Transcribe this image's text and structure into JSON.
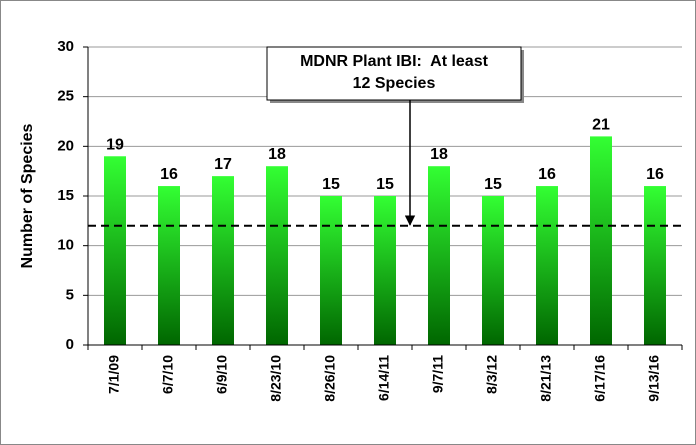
{
  "chart_data": {
    "type": "bar",
    "y_label": "Number of Species",
    "categories": [
      "7/1/09",
      "6/7/10",
      "6/9/10",
      "8/23/10",
      "8/26/10",
      "6/14/11",
      "9/7/11",
      "8/3/12",
      "8/21/13",
      "6/17/16",
      "9/13/16"
    ],
    "values": [
      19,
      16,
      17,
      18,
      15,
      15,
      18,
      15,
      16,
      21,
      16
    ],
    "color": "#33ff33",
    "ylim": [
      0,
      30
    ],
    "yticks": [
      0,
      5,
      10,
      15,
      20,
      25,
      30
    ],
    "grid": true,
    "threshold": 12,
    "annotation": [
      "MDNR Plant IBI:  At least",
      "12 Species"
    ]
  }
}
